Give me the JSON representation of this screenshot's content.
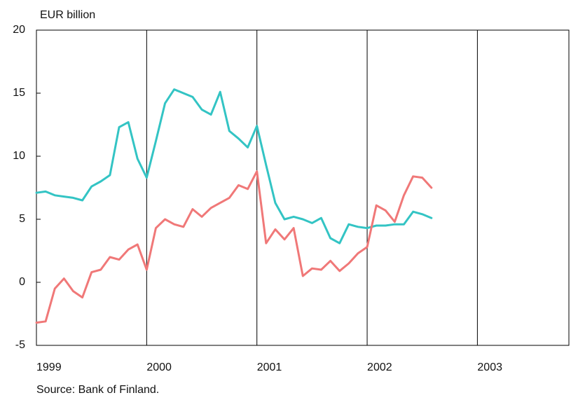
{
  "chart_data": {
    "type": "line",
    "y_label": "EUR billion",
    "source": "Source: Bank of Finland.",
    "x": [
      1999,
      1999.0833,
      1999.1667,
      1999.25,
      1999.3333,
      1999.4167,
      1999.5,
      1999.5833,
      1999.6667,
      1999.75,
      1999.8333,
      1999.9167,
      2000,
      2000.0833,
      2000.1667,
      2000.25,
      2000.3333,
      2000.4167,
      2000.5,
      2000.5833,
      2000.6667,
      2000.75,
      2000.8333,
      2000.9167,
      2001,
      2001.0833,
      2001.1667,
      2001.25,
      2001.3333,
      2001.4167,
      2001.5,
      2001.5833,
      2001.6667,
      2001.75,
      2001.8333,
      2001.9167,
      2002,
      2002.0833,
      2002.1667,
      2002.25,
      2002.3333,
      2002.4167,
      2002.5,
      2002.5833
    ],
    "series": [
      {
        "color": "#33c4c4",
        "values": [
          7.1,
          7.2,
          6.9,
          6.8,
          6.7,
          6.5,
          7.6,
          8.0,
          8.5,
          12.3,
          12.7,
          9.8,
          8.3,
          11.2,
          14.2,
          15.3,
          15.0,
          14.7,
          13.7,
          13.3,
          15.1,
          12.0,
          11.4,
          10.7,
          12.4,
          9.3,
          6.3,
          5.0,
          5.2,
          5.0,
          4.7,
          5.1,
          3.5,
          3.1,
          4.6,
          4.4,
          4.3,
          4.5,
          4.5,
          4.6,
          4.6,
          5.6,
          5.4,
          5.1
        ]
      },
      {
        "color": "#f07878",
        "values": [
          -3.2,
          -3.1,
          -0.5,
          0.3,
          -0.7,
          -1.2,
          0.8,
          1.0,
          2.0,
          1.8,
          2.6,
          3.0,
          1.0,
          4.3,
          5.0,
          4.6,
          4.4,
          5.8,
          5.2,
          5.9,
          6.3,
          6.7,
          7.7,
          7.4,
          8.8,
          3.1,
          4.2,
          3.4,
          4.3,
          0.5,
          1.1,
          1.0,
          1.7,
          0.9,
          1.5,
          2.3,
          2.8,
          6.1,
          5.7,
          4.8,
          6.9,
          8.4,
          8.3,
          7.5
        ]
      }
    ],
    "xlim": [
      1999,
      2003.83
    ],
    "xticks": [
      1999,
      2000,
      2001,
      2002,
      2003
    ],
    "ylim": [
      -5,
      20
    ],
    "yticks": [
      -5,
      0,
      5,
      10,
      15,
      20
    ],
    "grid": true
  }
}
